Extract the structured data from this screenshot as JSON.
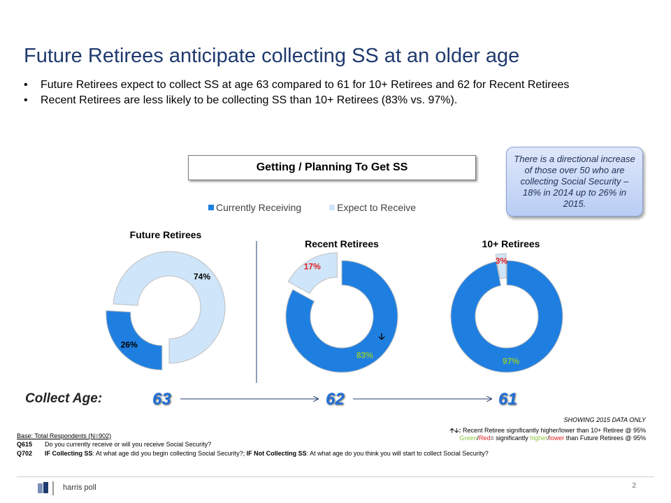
{
  "title": "Future Retirees anticipate collecting SS at an older age",
  "bullets": [
    "Future Retirees expect to collect SS at age 63 compared to 61 for 10+ Retirees and 62 for Recent Retirees",
    "Recent Retirees are less likely to be collecting SS than 10+ Retirees (83% vs. 97%)."
  ],
  "bullet_marker": "•",
  "chart_header": "Getting / Planning To Get SS",
  "callout": "There is a directional increase of those over 50 who are collecting Social Security – 18% in 2014 up to 26% in 2015.",
  "legend": {
    "receiving": "Currently Receiving",
    "expect": "Expect to Receive"
  },
  "colors": {
    "receiving": "#1f7fe0",
    "expect": "#cfe5f9",
    "title": "#1f3a6e",
    "age": "#1f6fd8",
    "red": "#e02020",
    "green": "#8cc63f"
  },
  "chart_data": [
    {
      "type": "pie",
      "title": "Future Retirees",
      "series": [
        {
          "name": "Currently Receiving",
          "value": 26
        },
        {
          "name": "Expect to Receive",
          "value": 74
        }
      ],
      "labels": [
        "26%",
        "74%"
      ]
    },
    {
      "type": "pie",
      "title": "Recent Retirees",
      "series": [
        {
          "name": "Currently Receiving",
          "value": 83
        },
        {
          "name": "Expect to Receive",
          "value": 17
        }
      ],
      "labels": [
        "83%",
        "17%"
      ]
    },
    {
      "type": "pie",
      "title": "10+ Retirees",
      "series": [
        {
          "name": "Currently Receiving",
          "value": 97
        },
        {
          "name": "Expect to Receive",
          "value": 3
        }
      ],
      "labels": [
        "97%",
        "3%"
      ]
    }
  ],
  "sig_arrow": "🡣",
  "collect": {
    "label": "Collect Age:",
    "ages": [
      "63",
      "62",
      "61"
    ]
  },
  "notes": {
    "showing": "SHOWING 2015 DATA ONLY",
    "arrows_prefix": "🡡🡣:",
    "arrows": " Recent Retiree significantly higher/lower than 10+ Retiree @ 95%",
    "green": "Green",
    "slash": "/",
    "red": "Red",
    "sig_mid": "= significantly ",
    "higher": "higher",
    "lower": "lower",
    "sig_end": " than Future Retirees @ 95%"
  },
  "base": {
    "text": "Base: Total Respondents (N=902)",
    "q615_code": "Q615",
    "q615": "Do you currently receive or will you receive Social Security?",
    "q702_code": "Q702",
    "q702_a": "IF Collecting SS",
    "q702_b": ": At what age did you begin collecting Social Security?; ",
    "q702_c": "IF Not Collecting SS",
    "q702_d": ":  At what age do you think you will start to collect Social Security?"
  },
  "footer": {
    "logo": "harris poll",
    "page": "2"
  }
}
